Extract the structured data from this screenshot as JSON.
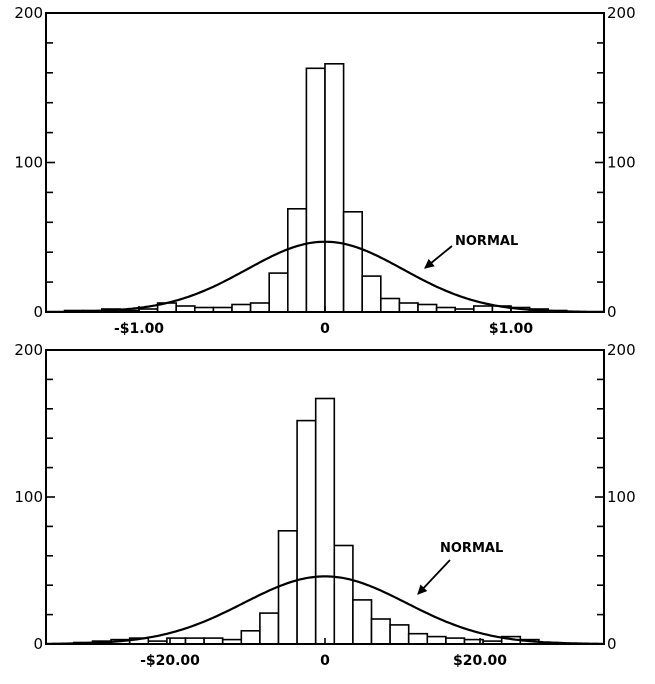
{
  "chart_data": [
    {
      "type": "bar",
      "title": "",
      "xlabel": "",
      "ylabel": "",
      "ylim": [
        0,
        200
      ],
      "xlim": [
        -1.5,
        1.5
      ],
      "y_ticks": [
        0,
        100,
        200
      ],
      "y_tick_labels": [
        "0",
        "100",
        "200"
      ],
      "x_tick_labels": [
        {
          "value": -1.0,
          "label": "-$1.00"
        },
        {
          "value": 0,
          "label": "0"
        },
        {
          "value": 1.0,
          "label": "$1.00"
        }
      ],
      "bin_width": 0.1,
      "bins": [
        {
          "x": -1.35,
          "count": 1
        },
        {
          "x": -1.25,
          "count": 1
        },
        {
          "x": -1.15,
          "count": 2
        },
        {
          "x": -1.05,
          "count": 1
        },
        {
          "x": -0.95,
          "count": 2
        },
        {
          "x": -0.85,
          "count": 6
        },
        {
          "x": -0.75,
          "count": 4
        },
        {
          "x": -0.65,
          "count": 3
        },
        {
          "x": -0.55,
          "count": 3
        },
        {
          "x": -0.45,
          "count": 5
        },
        {
          "x": -0.35,
          "count": 6
        },
        {
          "x": -0.25,
          "count": 26
        },
        {
          "x": -0.15,
          "count": 69
        },
        {
          "x": -0.05,
          "count": 163
        },
        {
          "x": 0.05,
          "count": 166
        },
        {
          "x": 0.15,
          "count": 67
        },
        {
          "x": 0.25,
          "count": 24
        },
        {
          "x": 0.35,
          "count": 9
        },
        {
          "x": 0.45,
          "count": 6
        },
        {
          "x": 0.55,
          "count": 5
        },
        {
          "x": 0.65,
          "count": 3
        },
        {
          "x": 0.75,
          "count": 2
        },
        {
          "x": 0.85,
          "count": 4
        },
        {
          "x": 0.95,
          "count": 4
        },
        {
          "x": 1.05,
          "count": 3
        },
        {
          "x": 1.15,
          "count": 2
        },
        {
          "x": 1.25,
          "count": 1
        }
      ],
      "normal_curve": {
        "label": "NORMAL",
        "peak": 47,
        "mean": 0,
        "sd": 0.42
      },
      "annotation": "NORMAL"
    },
    {
      "type": "bar",
      "title": "",
      "xlabel": "",
      "ylabel": "",
      "ylim": [
        0,
        200
      ],
      "xlim": [
        -36,
        36
      ],
      "y_ticks": [
        0,
        100,
        200
      ],
      "y_tick_labels": [
        "0",
        "100",
        "200"
      ],
      "x_tick_labels": [
        {
          "value": -20,
          "label": "-$20.00"
        },
        {
          "value": 0,
          "label": "0"
        },
        {
          "value": 20,
          "label": "$20.00"
        }
      ],
      "bin_width": 2.4,
      "bins": [
        {
          "x": -31.2,
          "count": 1
        },
        {
          "x": -28.8,
          "count": 2
        },
        {
          "x": -26.4,
          "count": 3
        },
        {
          "x": -24.0,
          "count": 4
        },
        {
          "x": -21.6,
          "count": 2
        },
        {
          "x": -19.2,
          "count": 4
        },
        {
          "x": -16.8,
          "count": 4
        },
        {
          "x": -14.4,
          "count": 4
        },
        {
          "x": -12.0,
          "count": 3
        },
        {
          "x": -9.6,
          "count": 9
        },
        {
          "x": -7.2,
          "count": 21
        },
        {
          "x": -4.8,
          "count": 77
        },
        {
          "x": -2.4,
          "count": 152
        },
        {
          "x": 0.0,
          "count": 167
        },
        {
          "x": 2.4,
          "count": 67
        },
        {
          "x": 4.8,
          "count": 30
        },
        {
          "x": 7.2,
          "count": 17
        },
        {
          "x": 9.6,
          "count": 13
        },
        {
          "x": 12.0,
          "count": 7
        },
        {
          "x": 14.4,
          "count": 5
        },
        {
          "x": 16.8,
          "count": 4
        },
        {
          "x": 19.2,
          "count": 3
        },
        {
          "x": 21.6,
          "count": 2
        },
        {
          "x": 24.0,
          "count": 5
        },
        {
          "x": 26.4,
          "count": 3
        },
        {
          "x": 28.8,
          "count": 1
        }
      ],
      "normal_curve": {
        "label": "NORMAL",
        "peak": 46,
        "mean": 0,
        "sd": 10.5
      },
      "annotation": "NORMAL"
    }
  ]
}
